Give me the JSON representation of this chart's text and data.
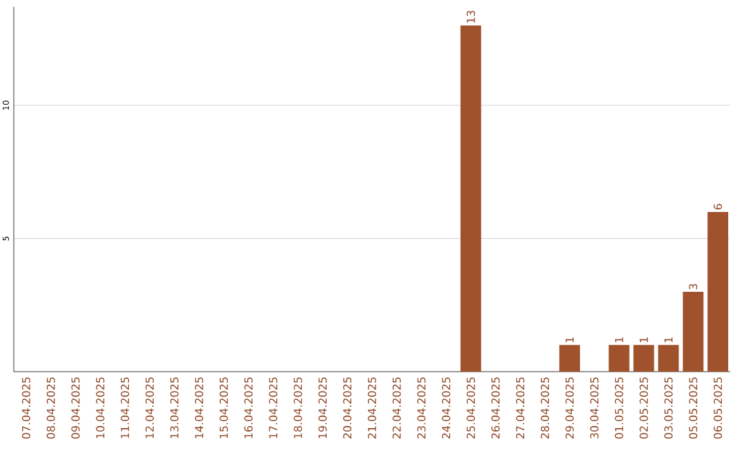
{
  "chart_data": {
    "type": "bar",
    "categories": [
      "07.04.2025",
      "08.04.2025",
      "09.04.2025",
      "10.04.2025",
      "11.04.2025",
      "12.04.2025",
      "13.04.2025",
      "14.04.2025",
      "15.04.2025",
      "16.04.2025",
      "17.04.2025",
      "18.04.2025",
      "19.04.2025",
      "20.04.2025",
      "21.04.2025",
      "22.04.2025",
      "23.04.2025",
      "24.04.2025",
      "25.04.2025",
      "26.04.2025",
      "27.04.2025",
      "28.04.2025",
      "29.04.2025",
      "30.04.2025",
      "01.05.2025",
      "02.05.2025",
      "03.05.2025",
      "05.05.2025",
      "06.05.2025"
    ],
    "values": [
      0,
      0,
      0,
      0,
      0,
      0,
      0,
      0,
      0,
      0,
      0,
      0,
      0,
      0,
      0,
      0,
      0,
      0,
      13,
      0,
      0,
      0,
      1,
      0,
      1,
      1,
      1,
      3,
      6
    ],
    "value_labels": [
      null,
      null,
      null,
      null,
      null,
      null,
      null,
      null,
      null,
      null,
      null,
      null,
      null,
      null,
      null,
      null,
      null,
      null,
      "13",
      null,
      null,
      null,
      "1",
      null,
      "1",
      "1",
      "1",
      "3",
      "6"
    ],
    "color": "#a0522d",
    "ylim": [
      0,
      13.7
    ],
    "yticks": [
      5,
      10
    ],
    "grid": "y"
  }
}
